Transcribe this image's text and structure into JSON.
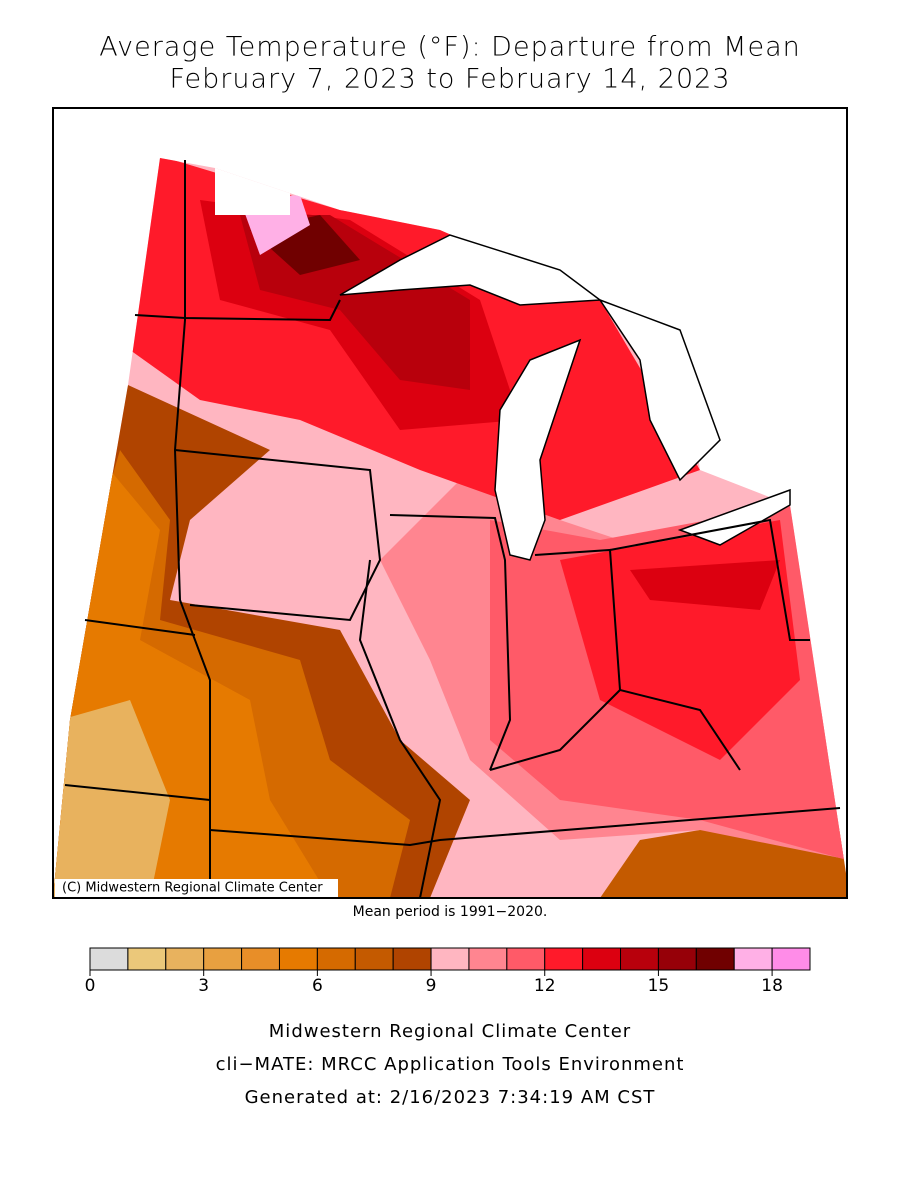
{
  "title": [
    "Average Temperature (°F): Departure from Mean",
    "February 7, 2023 to February 14, 2023"
  ],
  "copyright": "(C) Midwestern Regional Climate Center",
  "note": "Mean period is 1991−2020.",
  "legend": {
    "lim": [
      0,
      19
    ],
    "bins": [
      0,
      1,
      2,
      3,
      4,
      5,
      6,
      7,
      8,
      9,
      10,
      11,
      12,
      13,
      14,
      15,
      16,
      17,
      18,
      19
    ],
    "colors": [
      "#dcdcdc",
      "#ebc87a",
      "#e8b25e",
      "#e8a040",
      "#e88e28",
      "#e67a00",
      "#d56a00",
      "#c45a00",
      "#b04400",
      "#ffb6c1",
      "#ff8590",
      "#ff5a68",
      "#ff1a2a",
      "#dc0010",
      "#b8000c",
      "#960008",
      "#700000",
      "#ffb0e6",
      "#ff8ce8"
    ],
    "ticks": [
      0,
      3,
      6,
      9,
      12,
      15,
      18
    ]
  },
  "footer": [
    "Midwestern Regional Climate Center",
    "cli−MATE: MRCC Application Tools Environment",
    "Generated at: 2/16/2023 7:34:19 AM CST"
  ]
}
